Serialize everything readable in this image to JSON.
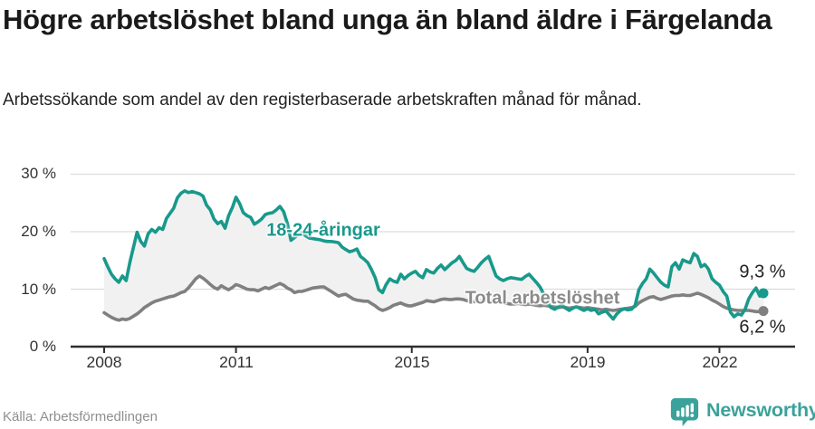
{
  "header": {
    "title": "Högre arbetslöshet bland unga än bland äldre i Färgelanda",
    "subtitle": "Arbetssökande som andel av den registerbaserade arbetskraften månad för månad."
  },
  "footer": {
    "source": "Källa: Arbetsförmedlingen",
    "brand": "Newsworthy",
    "brand_icon": "newsworthy-chart-bubble-icon"
  },
  "colors": {
    "young_line": "#18998b",
    "total_line": "#808080",
    "band_fill": "#f1f1f1",
    "grid": "#dcdcdc",
    "axis": "#2f2f2f",
    "brand_teal": "#3aa29b",
    "title_text": "#1a1a1a",
    "label_gray": "#8a8a8a"
  },
  "chart_data": {
    "type": "line",
    "frequency": "monthly",
    "x_start": "2008-01",
    "x_end": "2023-01",
    "ylim": [
      0,
      32
    ],
    "grid": true,
    "legend_position": "inline-labels",
    "y_ticks": [
      {
        "value": 30,
        "label": "30 %"
      },
      {
        "value": 20,
        "label": "20 %"
      },
      {
        "value": 10,
        "label": "10 %"
      },
      {
        "value": 0,
        "label": "0 %"
      }
    ],
    "x_ticks": [
      {
        "year": 2008,
        "label": "2008"
      },
      {
        "year": 2011,
        "label": "2011"
      },
      {
        "year": 2015,
        "label": "2015"
      },
      {
        "year": 2019,
        "label": "2019"
      },
      {
        "year": 2022,
        "label": "2022"
      }
    ],
    "series": [
      {
        "name": "18-24-åringar",
        "end_label": "9,3 %",
        "end_value": 9.3,
        "color": "#18998b",
        "values": [
          15.3,
          13.9,
          12.6,
          11.8,
          11.2,
          12.3,
          11.5,
          14.6,
          17.3,
          19.9,
          18.3,
          17.5,
          19.6,
          20.4,
          19.9,
          20.7,
          20.4,
          22.3,
          23.2,
          24.1,
          25.9,
          26.7,
          27.1,
          26.8,
          27.0,
          26.8,
          26.6,
          26.2,
          24.6,
          23.8,
          22.2,
          21.4,
          21.8,
          20.6,
          22.8,
          24.2,
          26.0,
          24.9,
          23.3,
          22.8,
          22.5,
          21.3,
          21.7,
          22.2,
          23.0,
          23.2,
          23.3,
          23.8,
          24.4,
          23.5,
          21.5,
          18.5,
          19.0,
          19.5,
          19.8,
          19.3,
          18.9,
          18.8,
          18.7,
          18.6,
          18.4,
          18.3,
          18.3,
          18.2,
          18.1,
          17.3,
          16.9,
          16.5,
          16.7,
          17.0,
          15.7,
          15.2,
          14.6,
          13.4,
          12.0,
          9.9,
          9.4,
          10.8,
          11.8,
          11.4,
          11.2,
          12.6,
          11.8,
          12.4,
          12.8,
          13.1,
          12.4,
          12.0,
          13.4,
          13.0,
          12.8,
          13.6,
          14.2,
          13.4,
          14.0,
          14.6,
          15.0,
          15.7,
          14.6,
          13.6,
          13.3,
          13.1,
          13.8,
          14.6,
          15.2,
          15.7,
          14.0,
          12.3,
          11.8,
          11.5,
          11.8,
          12.0,
          11.9,
          11.8,
          11.7,
          12.2,
          12.6,
          11.9,
          11.2,
          10.4,
          9.2,
          7.8,
          6.8,
          6.5,
          6.9,
          7.2,
          6.7,
          6.3,
          6.7,
          7.0,
          6.6,
          6.3,
          6.6,
          6.3,
          6.5,
          5.7,
          6.0,
          6.2,
          5.5,
          4.8,
          5.7,
          6.3,
          6.6,
          6.4,
          6.5,
          7.2,
          9.9,
          11.0,
          11.8,
          13.5,
          12.8,
          12.0,
          11.2,
          10.7,
          10.4,
          13.9,
          14.6,
          13.5,
          15.1,
          14.8,
          14.6,
          16.2,
          15.7,
          13.9,
          14.3,
          13.5,
          11.8,
          11.2,
          10.7,
          9.6,
          8.8,
          6.0,
          5.2,
          5.7,
          5.5,
          6.5,
          8.3,
          9.4,
          10.2,
          8.8,
          9.3
        ]
      },
      {
        "name": "Total arbetslöshet",
        "end_label": "6,2 %",
        "end_value": 6.2,
        "color": "#808080",
        "values": [
          5.9,
          5.5,
          5.1,
          4.8,
          4.6,
          4.8,
          4.7,
          4.9,
          5.3,
          5.7,
          6.2,
          6.8,
          7.2,
          7.6,
          7.9,
          8.1,
          8.3,
          8.5,
          8.7,
          8.8,
          9.1,
          9.4,
          9.6,
          10.2,
          11.0,
          11.8,
          12.3,
          11.9,
          11.4,
          10.8,
          10.3,
          10.0,
          10.6,
          10.2,
          9.9,
          10.3,
          10.8,
          10.6,
          10.3,
          10.0,
          9.9,
          9.9,
          9.7,
          10.0,
          10.3,
          10.1,
          10.4,
          10.7,
          11.0,
          10.7,
          10.2,
          9.9,
          9.4,
          9.6,
          9.6,
          9.8,
          10.0,
          10.2,
          10.3,
          10.4,
          10.4,
          10.0,
          9.6,
          9.2,
          8.8,
          9.0,
          9.1,
          8.7,
          8.3,
          8.1,
          8.0,
          7.9,
          7.9,
          7.5,
          7.1,
          6.6,
          6.3,
          6.5,
          6.8,
          7.2,
          7.4,
          7.6,
          7.3,
          7.1,
          7.1,
          7.3,
          7.5,
          7.7,
          8.0,
          7.9,
          7.8,
          8.0,
          8.2,
          8.3,
          8.2,
          8.2,
          8.3,
          8.3,
          8.2,
          8.0,
          7.9,
          7.8,
          7.9,
          8.0,
          8.1,
          8.0,
          7.9,
          7.8,
          7.7,
          7.6,
          7.5,
          7.4,
          7.4,
          7.5,
          7.4,
          7.3,
          7.4,
          7.3,
          7.2,
          7.1,
          7.2,
          7.1,
          7.0,
          6.9,
          6.8,
          6.9,
          6.8,
          6.7,
          6.8,
          6.9,
          6.8,
          6.7,
          6.8,
          6.7,
          6.6,
          6.5,
          6.4,
          6.5,
          6.4,
          6.3,
          6.4,
          6.5,
          6.6,
          6.7,
          6.8,
          7.0,
          7.6,
          8.0,
          8.3,
          8.6,
          8.7,
          8.4,
          8.2,
          8.4,
          8.6,
          8.8,
          8.9,
          8.9,
          9.0,
          8.9,
          8.9,
          9.1,
          9.3,
          9.1,
          8.8,
          8.5,
          8.1,
          7.8,
          7.4,
          7.0,
          6.7,
          6.5,
          6.4,
          6.3,
          6.3,
          6.3,
          6.3,
          6.2,
          6.1,
          6.1,
          6.2
        ]
      }
    ]
  }
}
